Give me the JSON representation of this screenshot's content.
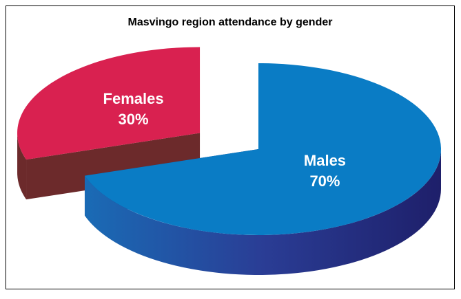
{
  "chart_data": {
    "type": "pie",
    "title": "Masvingo region attendance by gender",
    "categories": [
      "Males",
      "Females"
    ],
    "values": [
      70,
      30
    ],
    "value_labels": [
      "70%",
      "30%"
    ],
    "colors": [
      "#0a7cc5",
      "#d92150"
    ],
    "side_colors": [
      "#262d7e",
      "#6c2a2b"
    ]
  }
}
